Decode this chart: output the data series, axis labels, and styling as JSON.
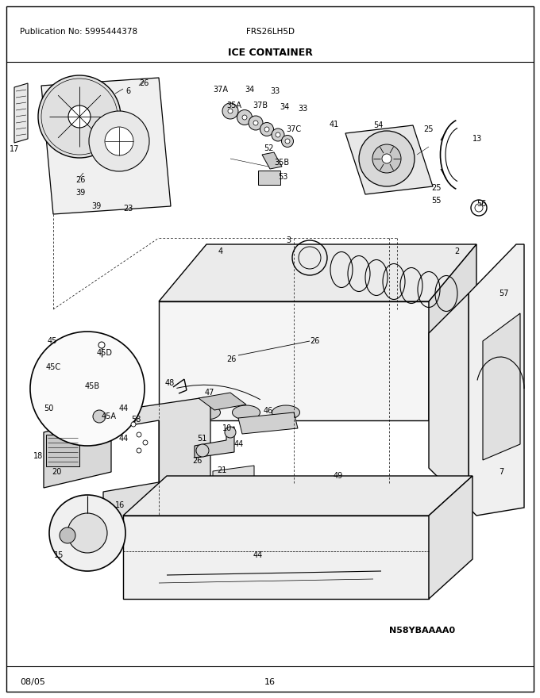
{
  "title": "ICE CONTAINER",
  "pub_no": "Publication No: 5995444378",
  "model": "FRS26LH5D",
  "date": "08/05",
  "page": "16",
  "diagram_id": "N58YBAAAA0",
  "bg_color": "#ffffff",
  "border_color": "#000000",
  "text_color": "#000000",
  "fig_width": 6.8,
  "fig_height": 8.8,
  "dpi": 100
}
